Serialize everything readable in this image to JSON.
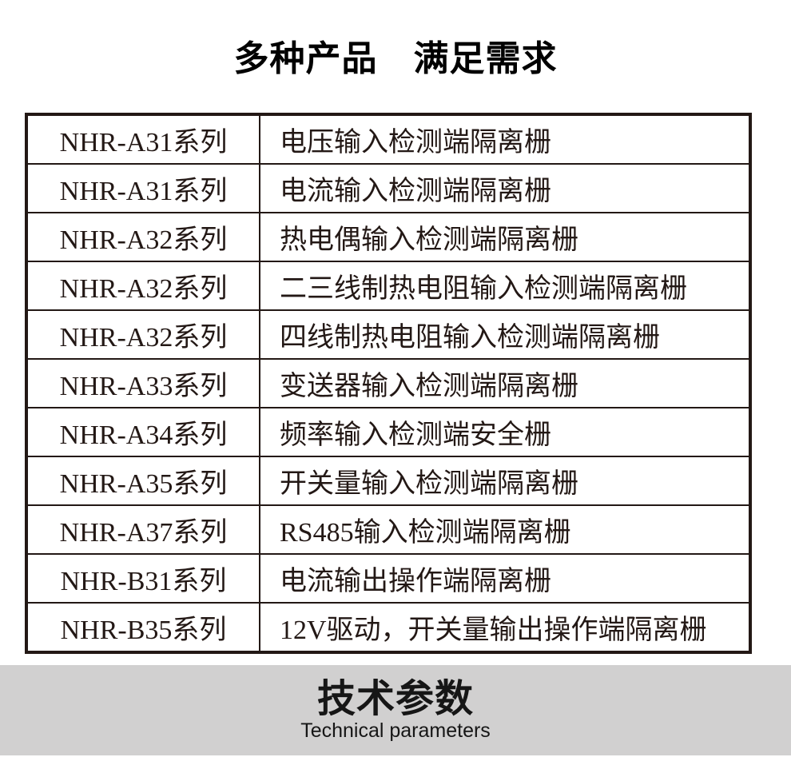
{
  "header": {
    "title": "多种产品　满足需求"
  },
  "table": {
    "rows": [
      {
        "series": "NHR-A31系列",
        "desc": "电压输入检测端隔离栅"
      },
      {
        "series": "NHR-A31系列",
        "desc": "电流输入检测端隔离栅"
      },
      {
        "series": "NHR-A32系列",
        "desc": "热电偶输入检测端隔离栅"
      },
      {
        "series": "NHR-A32系列",
        "desc": "二三线制热电阻输入检测端隔离栅"
      },
      {
        "series": "NHR-A32系列",
        "desc": "四线制热电阻输入检测端隔离栅"
      },
      {
        "series": "NHR-A33系列",
        "desc": "变送器输入检测端隔离栅"
      },
      {
        "series": "NHR-A34系列",
        "desc": "频率输入检测端安全栅"
      },
      {
        "series": "NHR-A35系列",
        "desc": "开关量输入检测端隔离栅"
      },
      {
        "series": "NHR-A37系列",
        "desc": "RS485输入检测端隔离栅"
      },
      {
        "series": "NHR-B31系列",
        "desc": "电流输出操作端隔离栅"
      },
      {
        "series": "NHR-B35系列",
        "desc": "12V驱动，开关量输出操作端隔离栅"
      }
    ]
  },
  "banner": {
    "title": "技术参数",
    "subtitle": "Technical parameters"
  },
  "colors": {
    "table_border": "#231815",
    "table_text": "#231815",
    "title_text": "#000000",
    "banner_background": "#d1d0d0",
    "banner_text": "#161616"
  }
}
